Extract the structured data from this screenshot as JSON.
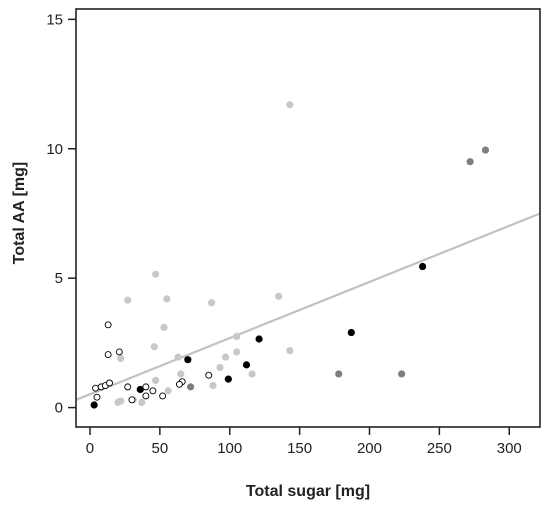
{
  "chart_data": {
    "type": "scatter",
    "xlabel": "Total sugar [mg]",
    "ylabel": "Total AA [mg]",
    "xlim": [
      -10,
      322
    ],
    "ylim": [
      -0.75,
      15.4
    ],
    "x_ticks": [
      0,
      50,
      100,
      150,
      200,
      250,
      300
    ],
    "y_ticks": [
      0,
      5,
      10,
      15
    ],
    "grid": false,
    "legend": "none",
    "colors": {
      "axis": "#222222",
      "trend": "#c2c2c2",
      "light": "#c8c8c8",
      "gray": "#7f7f7f",
      "black": "#000000",
      "open_stroke": "#000000"
    },
    "series": [
      {
        "style": "light",
        "points": [
          [
            27,
            4.15
          ],
          [
            47,
            5.15
          ],
          [
            55,
            4.2
          ],
          [
            87,
            4.05
          ],
          [
            135,
            4.3
          ],
          [
            143,
            11.7
          ],
          [
            46,
            2.35
          ],
          [
            53,
            3.1
          ],
          [
            22,
            1.9
          ],
          [
            63,
            1.95
          ],
          [
            105,
            2.75
          ],
          [
            105,
            2.15
          ],
          [
            143,
            2.2
          ],
          [
            97,
            1.95
          ],
          [
            93,
            1.55
          ],
          [
            116,
            1.3
          ],
          [
            65,
            1.3
          ],
          [
            47,
            1.05
          ],
          [
            88,
            0.85
          ],
          [
            56,
            0.65
          ],
          [
            31,
            0.3
          ],
          [
            37,
            0.2
          ],
          [
            20,
            0.2
          ],
          [
            22,
            0.25
          ]
        ]
      },
      {
        "style": "gray",
        "points": [
          [
            272,
            9.5
          ],
          [
            283,
            9.95
          ],
          [
            178,
            1.3
          ],
          [
            223,
            1.3
          ],
          [
            72,
            0.8
          ]
        ]
      },
      {
        "style": "black",
        "points": [
          [
            238,
            5.45
          ],
          [
            187,
            2.9
          ],
          [
            121,
            2.65
          ],
          [
            70,
            1.85
          ],
          [
            112,
            1.65
          ],
          [
            99,
            1.1
          ],
          [
            36,
            0.7
          ],
          [
            3,
            0.1
          ]
        ]
      },
      {
        "style": "open",
        "points": [
          [
            13,
            3.2
          ],
          [
            13,
            2.05
          ],
          [
            21,
            2.15
          ],
          [
            4,
            0.75
          ],
          [
            8,
            0.8
          ],
          [
            11,
            0.85
          ],
          [
            14,
            0.95
          ],
          [
            27,
            0.8
          ],
          [
            40,
            0.8
          ],
          [
            45,
            0.65
          ],
          [
            52,
            0.45
          ],
          [
            40,
            0.45
          ],
          [
            30,
            0.3
          ],
          [
            66,
            1.0
          ],
          [
            64,
            0.9
          ],
          [
            85,
            1.25
          ],
          [
            5,
            0.4
          ]
        ]
      }
    ],
    "trend_line": {
      "x": [
        -10,
        322
      ],
      "y": [
        0.3,
        7.5
      ]
    }
  }
}
